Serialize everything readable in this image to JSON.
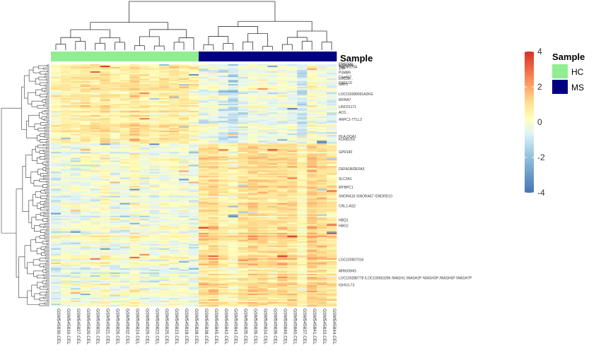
{
  "chart_data": {
    "type": "heatmap",
    "annotation_title": "Sample",
    "annotation_legend_title": "Sample",
    "groups": [
      {
        "name": "HC",
        "color": "#90EE90"
      },
      {
        "name": "MS",
        "color": "#000080"
      }
    ],
    "columns": [
      {
        "label": "GSM545830.CEL",
        "group": "HC"
      },
      {
        "label": "GSM545819.CEL",
        "group": "HC"
      },
      {
        "label": "GSM545827.CEL",
        "group": "HC"
      },
      {
        "label": "GSM545820.CEL",
        "group": "HC"
      },
      {
        "label": "GSM545831.CEL",
        "group": "HC"
      },
      {
        "label": "GSM545821.CEL",
        "group": "HC"
      },
      {
        "label": "GSM545826.CEL",
        "group": "HC"
      },
      {
        "label": "GSM545832.CEL",
        "group": "HC"
      },
      {
        "label": "GSM545824.CEL",
        "group": "HC"
      },
      {
        "label": "GSM545829.CEL",
        "group": "HC"
      },
      {
        "label": "GSM545822.CEL",
        "group": "HC"
      },
      {
        "label": "GSM545825.CEL",
        "group": "HC"
      },
      {
        "label": "GSM545823.CEL",
        "group": "HC"
      },
      {
        "label": "GSM545818.CEL",
        "group": "HC"
      },
      {
        "label": "GSM545828.CEL",
        "group": "HC"
      },
      {
        "label": "GSM545838.CEL",
        "group": "MS"
      },
      {
        "label": "GSM545845.CEL",
        "group": "MS"
      },
      {
        "label": "GSM545842.CEL",
        "group": "MS"
      },
      {
        "label": "GSM545843.CEL",
        "group": "MS"
      },
      {
        "label": "GSM545835.CEL",
        "group": "MS"
      },
      {
        "label": "GSM545839.CEL",
        "group": "MS"
      },
      {
        "label": "GSM545834.CEL",
        "group": "MS"
      },
      {
        "label": "GSM545836.CEL",
        "group": "MS"
      },
      {
        "label": "GSM545846.CEL",
        "group": "MS"
      },
      {
        "label": "GSM545840.CEL",
        "group": "MS"
      },
      {
        "label": "GSM545837.CEL",
        "group": "MS"
      },
      {
        "label": "GSM545841.CEL",
        "group": "MS"
      },
      {
        "label": "GSM545833.CEL",
        "group": "MS"
      },
      {
        "label": "GSM545844.CEL",
        "group": "MS"
      }
    ],
    "row_labels": [
      "ENSG00...",
      "C17orf99",
      "TMEM176A",
      "ZNF",
      "",
      "",
      "PSMB9",
      "",
      "",
      "C1orf12",
      "LOC28...",
      "",
      "",
      "CXCL10",
      "GBP1",
      "",
      "",
      "",
      "",
      "",
      "",
      "LOC100289091A2KG",
      "",
      "",
      "",
      "MXRA7",
      "",
      "",
      "",
      "",
      "LINC01171",
      "",
      "",
      "",
      "AC0...",
      "",
      "",
      "",
      "",
      "ARPC1-TTLL3",
      "",
      "",
      "",
      "",
      "",
      "",
      "",
      "",
      "",
      "",
      "",
      "HLA-DQA1",
      "",
      "KLRB1/18",
      "",
      "",
      "",
      "",
      "",
      "",
      "",
      "",
      "GPR183",
      "",
      "",
      "",
      "",
      "",
      "",
      "",
      "",
      "",
      "",
      "",
      "DEFA1B/DEFA3",
      "",
      "",
      "",
      "",
      "",
      "",
      "SLC2A1",
      "",
      "",
      "",
      "",
      "",
      "MYBPC1",
      "",
      "",
      "",
      "",
      "",
      "SNORA16 /SNORA67 /SNORD10",
      "",
      "",
      "",
      "",
      "",
      "",
      "CRL1-AS2",
      "",
      "",
      "",
      "",
      "",
      "",
      "",
      "",
      "",
      "HBQ1",
      "",
      "",
      "",
      "HBG2",
      "",
      "",
      "",
      "",
      "",
      "",
      "",
      "",
      "",
      "",
      "",
      "",
      "",
      "",
      "",
      "",
      "",
      "",
      "",
      "",
      "",
      "",
      "",
      "LOC100507016",
      "",
      "",
      "",
      "",
      "",
      "",
      "",
      "MIR600HG",
      "",
      "",
      "",
      "",
      "LOC100288778 /LOC100653286 /WASH1 /WASH2P /WASH3P /WASH5P /WASH7P",
      "",
      "",
      "",
      "",
      "IGHV3-73",
      "",
      "",
      "",
      ""
    ],
    "values_summary": {
      "n_rows": 171,
      "n_columns": 29,
      "HC_rows_top": "slightly positive (about 0 to 1)",
      "MS_rows_top": "slightly negative (about -1 to 0)",
      "HC_rows_bottom": "slightly negative (about -1 to 0)",
      "MS_rows_bottom": "positive (about 0.5 to 2.5)"
    },
    "color_scale": {
      "min": -4,
      "max": 4,
      "ticks": [
        4,
        2,
        0,
        -2,
        -4
      ],
      "colors": [
        "#4575B4",
        "#91BFDB",
        "#E0F3F8",
        "#FFFFBF",
        "#FEE090",
        "#FC8D59",
        "#D73027"
      ]
    },
    "legend_position": "right"
  }
}
